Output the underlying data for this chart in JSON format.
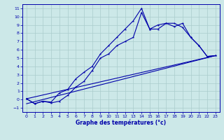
{
  "xlabel": "Graphe des températures (°c)",
  "bg_color": "#cce8e8",
  "grid_color": "#aacccc",
  "line_color": "#0000aa",
  "xlim": [
    -0.5,
    23.5
  ],
  "ylim": [
    -1.5,
    11.5
  ],
  "xticks": [
    0,
    1,
    2,
    3,
    4,
    5,
    6,
    7,
    8,
    9,
    10,
    11,
    12,
    13,
    14,
    15,
    16,
    17,
    18,
    19,
    20,
    21,
    22,
    23
  ],
  "yticks": [
    -1,
    0,
    1,
    2,
    3,
    4,
    5,
    6,
    7,
    8,
    9,
    10,
    11
  ],
  "series1_x": [
    0,
    1,
    2,
    3,
    4,
    5,
    6,
    7,
    8,
    9,
    10,
    11,
    12,
    13,
    14,
    15,
    16,
    17,
    18,
    19,
    20,
    21,
    22,
    23
  ],
  "series1_y": [
    0.1,
    -0.5,
    -0.2,
    -0.3,
    0.8,
    1.2,
    2.5,
    3.3,
    4.0,
    5.5,
    6.5,
    7.5,
    8.5,
    9.5,
    11.0,
    8.5,
    8.5,
    9.2,
    9.2,
    8.7,
    7.5,
    6.5,
    5.2,
    5.3
  ],
  "series2_x": [
    0,
    1,
    2,
    3,
    4,
    5,
    6,
    7,
    8,
    9,
    10,
    11,
    12,
    13,
    14,
    15,
    16,
    17,
    18,
    19,
    20,
    21,
    22,
    23
  ],
  "series2_y": [
    0.1,
    -0.5,
    -0.2,
    -0.4,
    -0.2,
    0.5,
    1.5,
    2.2,
    3.5,
    5.0,
    5.5,
    6.5,
    7.0,
    7.5,
    10.5,
    8.5,
    9.0,
    9.2,
    8.8,
    9.2,
    7.5,
    6.5,
    5.2,
    5.3
  ],
  "series3_x": [
    0,
    23
  ],
  "series3_y": [
    0.1,
    5.3
  ],
  "series4_x": [
    0,
    23
  ],
  "series4_y": [
    -0.5,
    5.3
  ]
}
